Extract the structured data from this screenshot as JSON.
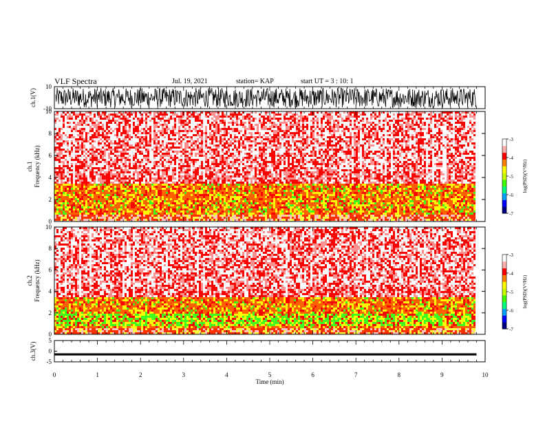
{
  "header": {
    "title": "VLF Spectra",
    "date": "Jul. 19, 2021",
    "station": "station= KAP",
    "start": "start UT = 3 : 10: 1"
  },
  "colors": {
    "spectrogram_scale": [
      "#000080",
      "#0000ff",
      "#00a0ff",
      "#00ff80",
      "#40ff00",
      "#c8ff00",
      "#ffff00",
      "#ff8000",
      "#ff0000",
      "#ffb0b0",
      "#ffffff"
    ],
    "waveform": "#000000"
  },
  "chart_data": [
    {
      "type": "line",
      "name": "ch.1 waveform",
      "ylabel": "ch.1(V)",
      "ylim": [
        -10,
        10
      ],
      "yticks": [
        "10",
        "-10"
      ],
      "xlim": [
        0,
        10
      ],
      "x_end": 9.8,
      "amplitude_range": [
        -9,
        9
      ]
    },
    {
      "type": "heatmap",
      "name": "ch.1 spectrogram",
      "ylabel": "ch.1 Frequency (kHz)",
      "ylim": [
        0,
        10
      ],
      "yticks": [
        "0",
        "2",
        "4",
        "6",
        "8",
        "10"
      ],
      "xlim": [
        0,
        10
      ],
      "x_end": 9.8,
      "colorbar": {
        "label": "log(PSD)(V²/Hz)",
        "range": [
          -7,
          -3
        ],
        "ticks": [
          "-3",
          "-4",
          "-5",
          "-6",
          "-7"
        ]
      }
    },
    {
      "type": "heatmap",
      "name": "ch.2 spectrogram",
      "ylabel": "ch.2 Frequency (kHz)",
      "ylim": [
        0,
        10
      ],
      "yticks": [
        "0",
        "2",
        "4",
        "6",
        "8",
        "10"
      ],
      "xlim": [
        0,
        10
      ],
      "x_end": 9.8,
      "colorbar": {
        "label": "log(PSD)(V²/Hz)",
        "range": [
          -7,
          -3
        ],
        "ticks": [
          "-3",
          "-4",
          "-5",
          "-6",
          "-7"
        ]
      }
    },
    {
      "type": "line",
      "name": "ch.3 waveform",
      "ylabel": "ch.3(V)",
      "ylim": [
        -5,
        5
      ],
      "yticks": [
        "5",
        "0",
        "-5"
      ],
      "xlim": [
        0,
        10
      ],
      "x_end": 9.8,
      "level": -1.5,
      "amplitude_range": [
        -2,
        -1
      ]
    }
  ],
  "x_axis": {
    "label": "Time (min)",
    "ticks": [
      "0",
      "1",
      "2",
      "3",
      "4",
      "5",
      "6",
      "7",
      "8",
      "9",
      "10"
    ]
  }
}
